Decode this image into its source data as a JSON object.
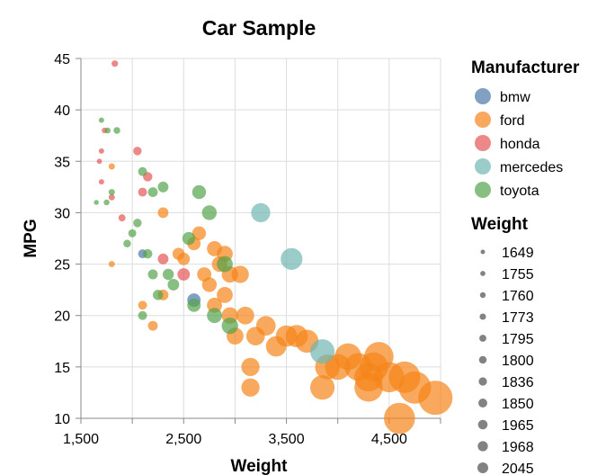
{
  "chart_data": {
    "type": "scatter",
    "title": "Car Sample",
    "xlabel": "Weight",
    "ylabel": "MPG",
    "xlim": [
      1500,
      5000
    ],
    "ylim": [
      10,
      45
    ],
    "x_ticks": [
      1500,
      2500,
      3500,
      4500
    ],
    "x_tick_labels": [
      "1,500",
      "2,500",
      "3,500",
      "4,500"
    ],
    "y_ticks": [
      10,
      15,
      20,
      25,
      30,
      35,
      40,
      45
    ],
    "grid": true,
    "size_encoding": "Weight",
    "color_legend": {
      "title": "Manufacturer",
      "placement": "right",
      "entries": [
        {
          "name": "bmw",
          "color": "#4c78a8"
        },
        {
          "name": "ford",
          "color": "#f58518"
        },
        {
          "name": "honda",
          "color": "#e45756"
        },
        {
          "name": "mercedes",
          "color": "#72b7b2"
        },
        {
          "name": "toyota",
          "color": "#54a24b"
        }
      ]
    },
    "size_legend": {
      "title": "Weight",
      "placement": "right",
      "values": [
        1649,
        1755,
        1760,
        1773,
        1795,
        1800,
        1836,
        1850,
        1965,
        1968,
        2045
      ]
    },
    "series": [
      {
        "name": "bmw",
        "points": [
          {
            "x": 2100,
            "y": 26
          },
          {
            "x": 2600,
            "y": 21.5
          }
        ]
      },
      {
        "name": "ford",
        "points": [
          {
            "x": 1800,
            "y": 25
          },
          {
            "x": 1800,
            "y": 34.5
          },
          {
            "x": 2300,
            "y": 30
          },
          {
            "x": 2100,
            "y": 21
          },
          {
            "x": 2200,
            "y": 19
          },
          {
            "x": 2300,
            "y": 22
          },
          {
            "x": 2450,
            "y": 26
          },
          {
            "x": 2600,
            "y": 27
          },
          {
            "x": 2650,
            "y": 28
          },
          {
            "x": 2800,
            "y": 26.5
          },
          {
            "x": 2850,
            "y": 25
          },
          {
            "x": 2900,
            "y": 26
          },
          {
            "x": 2750,
            "y": 23
          },
          {
            "x": 2900,
            "y": 22
          },
          {
            "x": 2950,
            "y": 24
          },
          {
            "x": 3050,
            "y": 24
          },
          {
            "x": 2950,
            "y": 20
          },
          {
            "x": 3100,
            "y": 20
          },
          {
            "x": 3000,
            "y": 18
          },
          {
            "x": 3200,
            "y": 18
          },
          {
            "x": 3300,
            "y": 19
          },
          {
            "x": 3400,
            "y": 17
          },
          {
            "x": 3500,
            "y": 18
          },
          {
            "x": 3600,
            "y": 18
          },
          {
            "x": 3700,
            "y": 17.5
          },
          {
            "x": 3900,
            "y": 15
          },
          {
            "x": 4000,
            "y": 15
          },
          {
            "x": 4100,
            "y": 16
          },
          {
            "x": 4200,
            "y": 15
          },
          {
            "x": 4300,
            "y": 14
          },
          {
            "x": 4350,
            "y": 15
          },
          {
            "x": 4400,
            "y": 16
          },
          {
            "x": 4500,
            "y": 14
          },
          {
            "x": 4650,
            "y": 14
          },
          {
            "x": 4750,
            "y": 13
          },
          {
            "x": 4950,
            "y": 12
          },
          {
            "x": 3850,
            "y": 13
          },
          {
            "x": 4300,
            "y": 13
          },
          {
            "x": 4600,
            "y": 10
          },
          {
            "x": 3150,
            "y": 13
          },
          {
            "x": 3150,
            "y": 15
          },
          {
            "x": 2500,
            "y": 25.5
          },
          {
            "x": 2700,
            "y": 24
          },
          {
            "x": 2800,
            "y": 21
          }
        ]
      },
      {
        "name": "honda",
        "points": [
          {
            "x": 1830,
            "y": 44.5
          },
          {
            "x": 1730,
            "y": 38
          },
          {
            "x": 1700,
            "y": 36
          },
          {
            "x": 1700,
            "y": 33
          },
          {
            "x": 1680,
            "y": 35
          },
          {
            "x": 1800,
            "y": 31.5
          },
          {
            "x": 1900,
            "y": 29.5
          },
          {
            "x": 2050,
            "y": 36
          },
          {
            "x": 2100,
            "y": 32
          },
          {
            "x": 2150,
            "y": 33.5
          },
          {
            "x": 2300,
            "y": 25.5
          },
          {
            "x": 2500,
            "y": 24
          }
        ]
      },
      {
        "name": "mercedes",
        "points": [
          {
            "x": 3250,
            "y": 30
          },
          {
            "x": 3550,
            "y": 25.5
          },
          {
            "x": 3850,
            "y": 16.5
          }
        ]
      },
      {
        "name": "toyota",
        "points": [
          {
            "x": 1650,
            "y": 31
          },
          {
            "x": 1750,
            "y": 31
          },
          {
            "x": 1800,
            "y": 32
          },
          {
            "x": 1700,
            "y": 39
          },
          {
            "x": 1760,
            "y": 38
          },
          {
            "x": 1850,
            "y": 38
          },
          {
            "x": 1950,
            "y": 27
          },
          {
            "x": 2000,
            "y": 28
          },
          {
            "x": 2050,
            "y": 29
          },
          {
            "x": 2100,
            "y": 34
          },
          {
            "x": 2150,
            "y": 26
          },
          {
            "x": 2200,
            "y": 24
          },
          {
            "x": 2250,
            "y": 22
          },
          {
            "x": 2300,
            "y": 32.5
          },
          {
            "x": 2100,
            "y": 20
          },
          {
            "x": 2200,
            "y": 32
          },
          {
            "x": 2550,
            "y": 27.5
          },
          {
            "x": 2650,
            "y": 32
          },
          {
            "x": 2750,
            "y": 30
          },
          {
            "x": 2800,
            "y": 20
          },
          {
            "x": 2900,
            "y": 25
          },
          {
            "x": 2950,
            "y": 19
          },
          {
            "x": 2600,
            "y": 21
          },
          {
            "x": 2400,
            "y": 23
          },
          {
            "x": 2350,
            "y": 24
          }
        ]
      }
    ]
  }
}
